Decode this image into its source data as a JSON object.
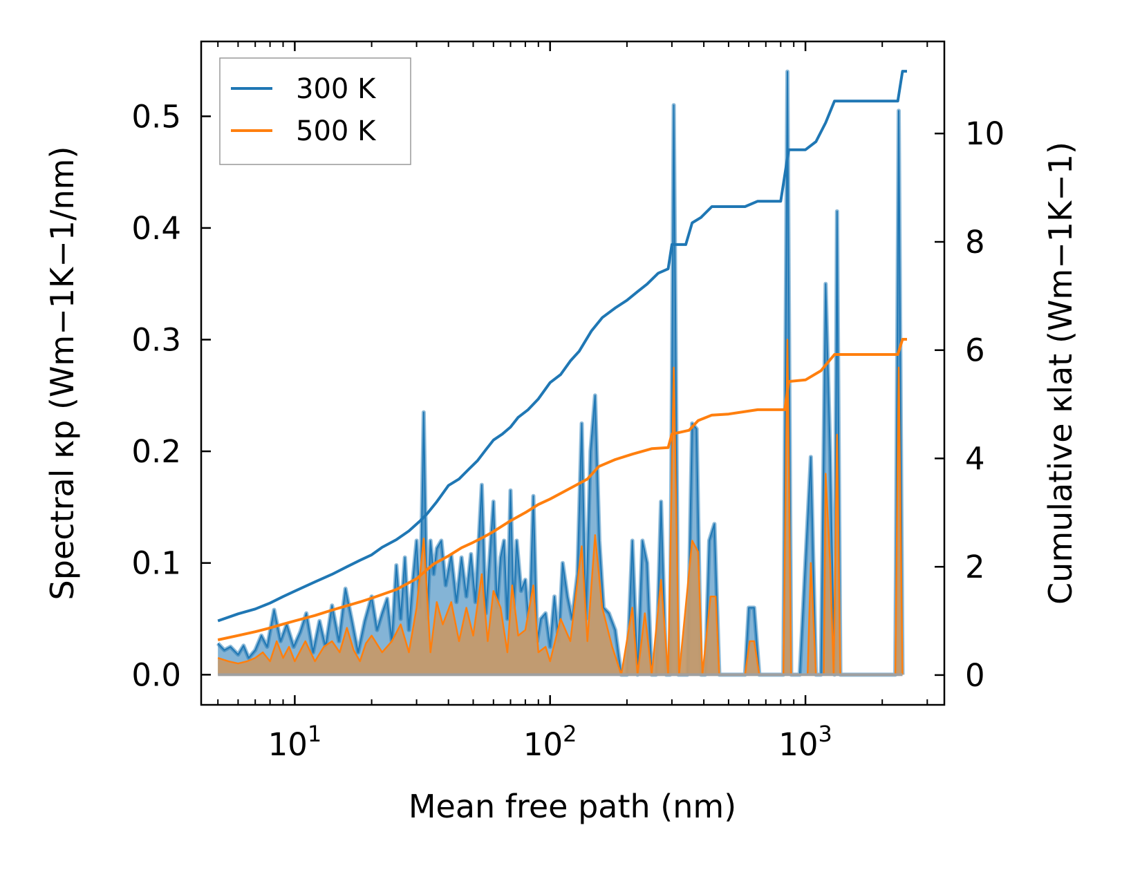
{
  "chart_data": {
    "type": "line",
    "title": "",
    "xlabel": "Mean free path (nm)",
    "ylabel_left": "Spectral κp (Wm−1K−1/nm)",
    "ylabel_right": "Cumulative κlat (Wm−1K−1)",
    "xscale": "log",
    "xlim": [
      4.3,
      3500
    ],
    "ylim_left": [
      -0.027,
      0.567
    ],
    "ylim_right": [
      -0.55,
      11.7
    ],
    "x_ticks": [
      {
        "base": "10",
        "exp": "1",
        "value": 10
      },
      {
        "base": "10",
        "exp": "2",
        "value": 100
      },
      {
        "base": "10",
        "exp": "3",
        "value": 1000
      }
    ],
    "y_ticks_left": [
      "0.0",
      "0.1",
      "0.2",
      "0.3",
      "0.4",
      "0.5"
    ],
    "y_tick_values_left": [
      0.0,
      0.1,
      0.2,
      0.3,
      0.4,
      0.5
    ],
    "y_ticks_right": [
      "0",
      "2",
      "4",
      "6",
      "8",
      "10"
    ],
    "y_tick_values_right": [
      0,
      2,
      4,
      6,
      8,
      10
    ],
    "legend": {
      "position": "top-left",
      "entries": [
        {
          "label": "300 K",
          "color": "#1f77b4"
        },
        {
          "label": "500 K",
          "color": "#ff7f0e"
        }
      ]
    },
    "spectral_300K": {
      "name": "300 K spectral",
      "color": "#1f77b4",
      "points": [
        [
          5.0,
          0.028
        ],
        [
          5.3,
          0.022
        ],
        [
          5.6,
          0.025
        ],
        [
          6.0,
          0.018
        ],
        [
          6.3,
          0.026
        ],
        [
          6.6,
          0.015
        ],
        [
          7.0,
          0.022
        ],
        [
          7.4,
          0.035
        ],
        [
          7.8,
          0.025
        ],
        [
          8.3,
          0.058
        ],
        [
          8.8,
          0.03
        ],
        [
          9.3,
          0.045
        ],
        [
          9.9,
          0.025
        ],
        [
          10.5,
          0.038
        ],
        [
          11.1,
          0.055
        ],
        [
          11.8,
          0.02
        ],
        [
          12.5,
          0.048
        ],
        [
          13.2,
          0.025
        ],
        [
          14.0,
          0.062
        ],
        [
          14.9,
          0.03
        ],
        [
          15.8,
          0.077
        ],
        [
          16.7,
          0.05
        ],
        [
          17.7,
          0.02
        ],
        [
          18.8,
          0.048
        ],
        [
          20.0,
          0.07
        ],
        [
          21.0,
          0.04
        ],
        [
          22.0,
          0.055
        ],
        [
          23.0,
          0.068
        ],
        [
          24.0,
          0.03
        ],
        [
          25.0,
          0.098
        ],
        [
          26.0,
          0.05
        ],
        [
          27.0,
          0.105
        ],
        [
          28.0,
          0.04
        ],
        [
          29.0,
          0.085
        ],
        [
          30.0,
          0.12
        ],
        [
          31.0,
          0.06
        ],
        [
          32.0,
          0.235
        ],
        [
          33.0,
          0.05
        ],
        [
          34.0,
          0.12
        ],
        [
          35.0,
          0.09
        ],
        [
          36.0,
          0.113
        ],
        [
          37.5,
          0.12
        ],
        [
          39.0,
          0.08
        ],
        [
          41.0,
          0.107
        ],
        [
          43.0,
          0.065
        ],
        [
          45.0,
          0.105
        ],
        [
          47.0,
          0.07
        ],
        [
          49.0,
          0.108
        ],
        [
          51.0,
          0.065
        ],
        [
          54.0,
          0.17
        ],
        [
          56.0,
          0.055
        ],
        [
          58.0,
          0.105
        ],
        [
          60.0,
          0.155
        ],
        [
          62.0,
          0.06
        ],
        [
          64.0,
          0.105
        ],
        [
          66.0,
          0.12
        ],
        [
          68.0,
          0.05
        ],
        [
          70.0,
          0.165
        ],
        [
          72.0,
          0.06
        ],
        [
          74.0,
          0.12
        ],
        [
          77.0,
          0.075
        ],
        [
          80.0,
          0.085
        ],
        [
          83.0,
          0.04
        ],
        [
          86.0,
          0.16
        ],
        [
          89.0,
          0.03
        ],
        [
          92.0,
          0.05
        ],
        [
          96.0,
          0.055
        ],
        [
          100.0,
          0.025
        ],
        [
          104.0,
          0.07
        ],
        [
          108.0,
          0.03
        ],
        [
          112.0,
          0.1
        ],
        [
          117.0,
          0.07
        ],
        [
          122.0,
          0.05
        ],
        [
          128.0,
          0.09
        ],
        [
          133.0,
          0.225
        ],
        [
          138.0,
          0.05
        ],
        [
          144.0,
          0.2
        ],
        [
          150.0,
          0.25
        ],
        [
          156.0,
          0.12
        ],
        [
          162.0,
          0.06
        ],
        [
          170.0,
          0.055
        ],
        [
          180.0,
          0.04
        ],
        [
          190.0,
          0.0
        ],
        [
          200.0,
          0.0
        ],
        [
          210.0,
          0.12
        ],
        [
          220.0,
          0.0
        ],
        [
          230.0,
          0.12
        ],
        [
          240.0,
          0.1
        ],
        [
          250.0,
          0.0
        ],
        [
          260.0,
          0.0
        ],
        [
          272.0,
          0.155
        ],
        [
          285.0,
          0.0
        ],
        [
          295.0,
          0.0
        ],
        [
          305.0,
          0.51
        ],
        [
          318.0,
          0.0
        ],
        [
          330.0,
          0.0
        ],
        [
          345.0,
          0.0
        ],
        [
          360.0,
          0.225
        ],
        [
          375.0,
          0.22
        ],
        [
          390.0,
          0.0
        ],
        [
          405.0,
          0.0
        ],
        [
          420.0,
          0.12
        ],
        [
          440.0,
          0.135
        ],
        [
          460.0,
          0.0
        ],
        [
          500.0,
          0.0
        ],
        [
          550.0,
          0.0
        ],
        [
          580.0,
          0.0
        ],
        [
          600.0,
          0.06
        ],
        [
          630.0,
          0.06
        ],
        [
          660.0,
          0.0
        ],
        [
          700.0,
          0.0
        ],
        [
          780.0,
          0.0
        ],
        [
          820.0,
          0.0
        ],
        [
          850.0,
          0.54
        ],
        [
          880.0,
          0.0
        ],
        [
          950.0,
          0.0
        ],
        [
          1050.0,
          0.195
        ],
        [
          1100.0,
          0.0
        ],
        [
          1150.0,
          0.0
        ],
        [
          1200.0,
          0.35
        ],
        [
          1250.0,
          0.2
        ],
        [
          1300.0,
          0.0
        ],
        [
          1330.0,
          0.415
        ],
        [
          1370.0,
          0.0
        ],
        [
          1500.0,
          0.0
        ],
        [
          2000.0,
          0.0
        ],
        [
          2250.0,
          0.0
        ],
        [
          2320.0,
          0.505
        ],
        [
          2400.0,
          0.0
        ]
      ]
    },
    "spectral_500K": {
      "name": "500 K spectral",
      "color": "#ff7f0e",
      "points": [
        [
          5.0,
          0.015
        ],
        [
          5.5,
          0.012
        ],
        [
          6.0,
          0.01
        ],
        [
          6.5,
          0.012
        ],
        [
          7.0,
          0.015
        ],
        [
          7.5,
          0.02
        ],
        [
          8.0,
          0.012
        ],
        [
          8.5,
          0.03
        ],
        [
          9.0,
          0.015
        ],
        [
          9.5,
          0.025
        ],
        [
          10.0,
          0.012
        ],
        [
          11.0,
          0.03
        ],
        [
          12.0,
          0.012
        ],
        [
          13.0,
          0.025
        ],
        [
          14.0,
          0.03
        ],
        [
          15.0,
          0.02
        ],
        [
          16.0,
          0.042
        ],
        [
          17.0,
          0.022
        ],
        [
          18.0,
          0.012
        ],
        [
          19.0,
          0.028
        ],
        [
          20.0,
          0.035
        ],
        [
          22.0,
          0.02
        ],
        [
          24.0,
          0.03
        ],
        [
          26.0,
          0.045
        ],
        [
          28.0,
          0.02
        ],
        [
          30.0,
          0.06
        ],
        [
          32.0,
          0.122
        ],
        [
          34.0,
          0.02
        ],
        [
          36.0,
          0.065
        ],
        [
          38.0,
          0.045
        ],
        [
          41.0,
          0.065
        ],
        [
          44.0,
          0.03
        ],
        [
          47.0,
          0.06
        ],
        [
          50.0,
          0.035
        ],
        [
          54.0,
          0.09
        ],
        [
          57.0,
          0.03
        ],
        [
          60.0,
          0.075
        ],
        [
          64.0,
          0.06
        ],
        [
          68.0,
          0.02
        ],
        [
          71.0,
          0.08
        ],
        [
          75.0,
          0.035
        ],
        [
          80.0,
          0.04
        ],
        [
          86.0,
          0.08
        ],
        [
          90.0,
          0.02
        ],
        [
          96.0,
          0.025
        ],
        [
          100.0,
          0.012
        ],
        [
          110.0,
          0.05
        ],
        [
          120.0,
          0.03
        ],
        [
          133.0,
          0.115
        ],
        [
          140.0,
          0.03
        ],
        [
          150.0,
          0.125
        ],
        [
          160.0,
          0.06
        ],
        [
          175.0,
          0.025
        ],
        [
          190.0,
          0.0
        ],
        [
          210.0,
          0.06
        ],
        [
          220.0,
          0.0
        ],
        [
          235.0,
          0.055
        ],
        [
          250.0,
          0.0
        ],
        [
          272.0,
          0.085
        ],
        [
          290.0,
          0.0
        ],
        [
          305.0,
          0.275
        ],
        [
          320.0,
          0.0
        ],
        [
          360.0,
          0.12
        ],
        [
          380.0,
          0.11
        ],
        [
          395.0,
          0.0
        ],
        [
          425.0,
          0.07
        ],
        [
          445.0,
          0.07
        ],
        [
          460.0,
          0.0
        ],
        [
          580.0,
          0.0
        ],
        [
          605.0,
          0.03
        ],
        [
          630.0,
          0.03
        ],
        [
          660.0,
          0.0
        ],
        [
          820.0,
          0.0
        ],
        [
          850.0,
          0.3
        ],
        [
          880.0,
          0.0
        ],
        [
          1020.0,
          0.0
        ],
        [
          1050.0,
          0.1
        ],
        [
          1100.0,
          0.0
        ],
        [
          1180.0,
          0.0
        ],
        [
          1200.0,
          0.18
        ],
        [
          1250.0,
          0.1
        ],
        [
          1290.0,
          0.0
        ],
        [
          1330.0,
          0.215
        ],
        [
          1370.0,
          0.0
        ],
        [
          2250.0,
          0.0
        ],
        [
          2320.0,
          0.275
        ],
        [
          2400.0,
          0.0
        ]
      ]
    },
    "cumulative_300K": {
      "name": "300 K",
      "color": "#1f77b4",
      "points": [
        [
          5.0,
          1.0
        ],
        [
          6.0,
          1.13
        ],
        [
          7.0,
          1.22
        ],
        [
          8.0,
          1.33
        ],
        [
          9.0,
          1.45
        ],
        [
          10.0,
          1.55
        ],
        [
          12.0,
          1.72
        ],
        [
          14.0,
          1.86
        ],
        [
          16.0,
          2.0
        ],
        [
          18.0,
          2.12
        ],
        [
          20.0,
          2.22
        ],
        [
          22.0,
          2.36
        ],
        [
          25.0,
          2.5
        ],
        [
          28.0,
          2.66
        ],
        [
          31.0,
          2.85
        ],
        [
          33.0,
          2.98
        ],
        [
          36.0,
          3.2
        ],
        [
          40.0,
          3.5
        ],
        [
          44.0,
          3.62
        ],
        [
          48.0,
          3.8
        ],
        [
          52.0,
          3.96
        ],
        [
          56.0,
          4.16
        ],
        [
          60.0,
          4.34
        ],
        [
          65.0,
          4.45
        ],
        [
          70.0,
          4.58
        ],
        [
          75.0,
          4.76
        ],
        [
          82.0,
          4.9
        ],
        [
          90.0,
          5.1
        ],
        [
          100.0,
          5.4
        ],
        [
          110.0,
          5.55
        ],
        [
          120.0,
          5.8
        ],
        [
          130.0,
          5.98
        ],
        [
          145.0,
          6.35
        ],
        [
          160.0,
          6.6
        ],
        [
          180.0,
          6.78
        ],
        [
          200.0,
          6.92
        ],
        [
          220.0,
          7.08
        ],
        [
          240.0,
          7.22
        ],
        [
          265.0,
          7.42
        ],
        [
          290.0,
          7.5
        ],
        [
          300.0,
          7.95
        ],
        [
          340.0,
          7.95
        ],
        [
          360.0,
          8.35
        ],
        [
          390.0,
          8.45
        ],
        [
          430.0,
          8.65
        ],
        [
          580.0,
          8.65
        ],
        [
          650.0,
          8.75
        ],
        [
          800.0,
          8.75
        ],
        [
          860.0,
          9.7
        ],
        [
          1000.0,
          9.7
        ],
        [
          1100.0,
          9.85
        ],
        [
          1200.0,
          10.2
        ],
        [
          1300.0,
          10.6
        ],
        [
          2300.0,
          10.6
        ],
        [
          2400.0,
          11.15
        ],
        [
          2500.0,
          11.15
        ]
      ]
    },
    "cumulative_500K": {
      "name": "500 K",
      "color": "#ff7f0e",
      "points": [
        [
          5.0,
          0.65
        ],
        [
          6.0,
          0.73
        ],
        [
          7.0,
          0.8
        ],
        [
          8.0,
          0.87
        ],
        [
          9.0,
          0.94
        ],
        [
          10.0,
          1.0
        ],
        [
          12.0,
          1.1
        ],
        [
          14.0,
          1.2
        ],
        [
          16.0,
          1.28
        ],
        [
          18.0,
          1.35
        ],
        [
          20.0,
          1.42
        ],
        [
          25.0,
          1.58
        ],
        [
          30.0,
          1.78
        ],
        [
          35.0,
          2.05
        ],
        [
          40.0,
          2.2
        ],
        [
          45.0,
          2.35
        ],
        [
          50.0,
          2.45
        ],
        [
          55.0,
          2.55
        ],
        [
          60.0,
          2.65
        ],
        [
          70.0,
          2.85
        ],
        [
          80.0,
          3.0
        ],
        [
          90.0,
          3.15
        ],
        [
          100.0,
          3.25
        ],
        [
          120.0,
          3.45
        ],
        [
          140.0,
          3.62
        ],
        [
          155.0,
          3.85
        ],
        [
          180.0,
          3.98
        ],
        [
          210.0,
          4.08
        ],
        [
          250.0,
          4.18
        ],
        [
          290.0,
          4.2
        ],
        [
          300.0,
          4.45
        ],
        [
          350.0,
          4.52
        ],
        [
          380.0,
          4.7
        ],
        [
          430.0,
          4.8
        ],
        [
          500.0,
          4.82
        ],
        [
          650.0,
          4.9
        ],
        [
          830.0,
          4.9
        ],
        [
          860.0,
          5.42
        ],
        [
          1000.0,
          5.45
        ],
        [
          1150.0,
          5.62
        ],
        [
          1300.0,
          5.92
        ],
        [
          2300.0,
          5.92
        ],
        [
          2400.0,
          6.2
        ],
        [
          2500.0,
          6.2
        ]
      ]
    }
  }
}
